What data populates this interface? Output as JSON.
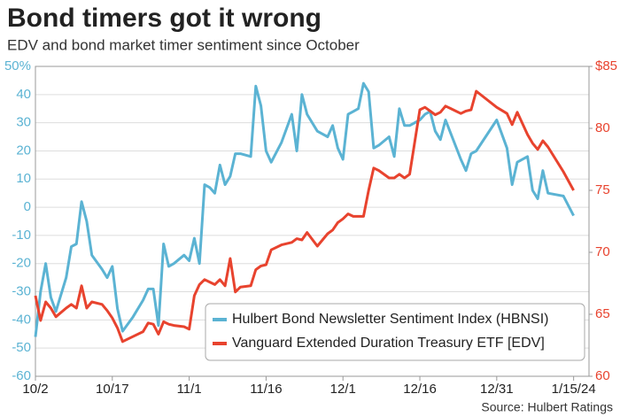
{
  "chart_data": {
    "type": "line",
    "title": "Bond timers got it wrong",
    "subtitle": "EDV and bond market timer sentiment since October",
    "source": "Source: Hulbert Ratings",
    "x": [
      0,
      1,
      2,
      3,
      4,
      6,
      7,
      8,
      9,
      10,
      11,
      13,
      14,
      15,
      16,
      17,
      19,
      21,
      22,
      23,
      24,
      25,
      26,
      27,
      29,
      30,
      31,
      32,
      33,
      34,
      35,
      36,
      37,
      38,
      39,
      40,
      42,
      43,
      44,
      45,
      46,
      48,
      50,
      51,
      52,
      53,
      55,
      57,
      58,
      59,
      60,
      61,
      62,
      63,
      64,
      65,
      66,
      67,
      69,
      70,
      71,
      72,
      73,
      75,
      76,
      77,
      78,
      79,
      80,
      83,
      84,
      85,
      86,
      90,
      92,
      93,
      94,
      96,
      97,
      98,
      99,
      100,
      103,
      105
    ],
    "xlim": [
      0,
      108
    ],
    "xticks": [
      {
        "value": 0,
        "label": "10/2"
      },
      {
        "value": 15,
        "label": "10/17"
      },
      {
        "value": 30,
        "label": "11/1"
      },
      {
        "value": 45,
        "label": "11/16"
      },
      {
        "value": 60,
        "label": "12/1"
      },
      {
        "value": 75,
        "label": "12/16"
      },
      {
        "value": 90,
        "label": "12/31"
      },
      {
        "value": 105,
        "label": "1/15/24"
      }
    ],
    "ylim": [
      -60,
      50
    ],
    "yticks": [
      {
        "value": 50,
        "label": "50%"
      },
      40,
      30,
      20,
      10,
      0,
      -10,
      -20,
      -30,
      -40,
      -50,
      -60
    ],
    "y2lim": [
      60,
      85
    ],
    "y2ticks": [
      {
        "value": 85,
        "label": "$85"
      },
      80,
      75,
      70,
      65,
      60
    ],
    "grid": true,
    "legend": "bottom",
    "series": [
      {
        "name": "Hulbert Bond Newsletter Sentiment Index (HBNSI)",
        "color": "#5bb3d3",
        "values": [
          -46,
          -30,
          -20,
          -32,
          -37,
          -25,
          -14,
          -13,
          2,
          -5,
          -17,
          -22,
          -25,
          -21,
          -36,
          -44,
          -39,
          -33,
          -29,
          -29,
          -42,
          -13,
          -21,
          -20,
          -17,
          -19,
          -11,
          -20,
          8,
          7,
          5,
          15,
          8,
          11,
          19,
          19,
          18,
          43,
          36,
          20,
          16,
          23,
          33,
          20,
          40,
          33,
          27,
          25,
          29,
          21,
          17,
          33,
          34,
          35,
          44,
          41,
          21,
          22,
          25,
          18,
          35,
          29,
          29,
          31,
          33,
          34,
          27,
          24,
          31,
          17,
          13,
          19,
          20,
          31,
          21,
          8,
          16,
          18,
          6,
          3,
          13,
          5,
          4,
          -3
        ]
      },
      {
        "name": "Vanguard Extended Duration Treasury ETF [EDV]",
        "color": "#e8432e",
        "axis": "y2",
        "values": [
          66.5,
          64.5,
          66,
          65.5,
          64.8,
          65.5,
          65.8,
          65.5,
          67.3,
          65.5,
          66,
          65.8,
          65.3,
          64.7,
          63.9,
          62.8,
          63.2,
          63.6,
          64.3,
          64.2,
          63.4,
          64.4,
          64.2,
          64.1,
          64,
          63.8,
          66.5,
          67.4,
          67.8,
          67.6,
          67.4,
          67.8,
          67.3,
          69.5,
          66.8,
          67.2,
          67.3,
          68.6,
          68.9,
          69,
          70.2,
          70.6,
          70.8,
          71.1,
          71,
          71.6,
          70.5,
          71.5,
          71.8,
          72.4,
          72.7,
          73.1,
          72.9,
          72.9,
          72.9,
          75,
          76.8,
          76.6,
          76,
          76,
          76.3,
          76,
          76.3,
          81.5,
          81.7,
          81.4,
          81.1,
          81.3,
          81.8,
          81.2,
          81.4,
          81.5,
          83,
          81.7,
          81.2,
          80.3,
          81.3,
          79.5,
          78.8,
          78.3,
          79,
          78.5,
          76.5,
          75
        ]
      }
    ]
  }
}
